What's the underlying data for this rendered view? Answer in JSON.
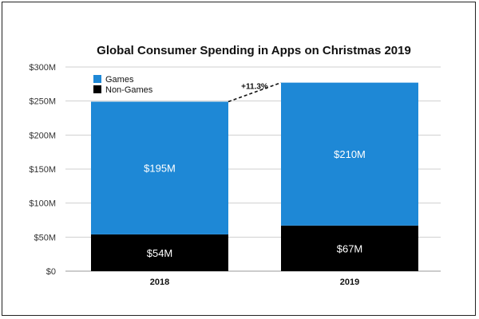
{
  "chart_data": {
    "type": "bar",
    "stacked": true,
    "title": "Global Consumer Spending in Apps on Christmas 2019",
    "xlabel": "",
    "ylabel": "",
    "categories": [
      "2018",
      "2019"
    ],
    "ylim": [
      0,
      300
    ],
    "yticks": [
      0,
      50,
      100,
      150,
      200,
      250,
      300
    ],
    "ytick_labels": [
      "$0",
      "$50M",
      "$100M",
      "$150M",
      "$200M",
      "$250M",
      "$300M"
    ],
    "grid": true,
    "legend": "top-left",
    "series": [
      {
        "name": "Non-Games",
        "values": [
          54,
          67
        ],
        "labels": [
          "$54M",
          "$67M"
        ],
        "color": "#000000"
      },
      {
        "name": "Games",
        "values": [
          195,
          210
        ],
        "labels": [
          "$195M",
          "$210M"
        ],
        "color": "#1e88d6"
      }
    ],
    "annotation": {
      "text": "+11.3%"
    }
  }
}
